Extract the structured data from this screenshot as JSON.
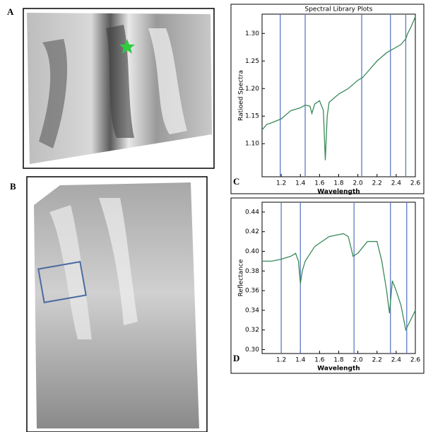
{
  "figure": {
    "panel_a_label": "A",
    "panel_b_label": "B"
  },
  "chart_data": [
    {
      "type": "line",
      "title": "Spectral Library Plots",
      "panel_label": "C",
      "xlabel": "Wavelength",
      "ylabel": "Ratioed Spectra",
      "color": "#3a8a5a",
      "band_color": "#5b7bc4",
      "x": [
        1.0,
        1.05,
        1.1,
        1.2,
        1.3,
        1.4,
        1.45,
        1.5,
        1.52,
        1.55,
        1.6,
        1.64,
        1.66,
        1.68,
        1.7,
        1.8,
        1.9,
        2.0,
        2.05,
        2.1,
        2.2,
        2.3,
        2.35,
        2.4,
        2.45,
        2.5,
        2.52,
        2.55,
        2.6
      ],
      "values": [
        1.125,
        1.135,
        1.138,
        1.145,
        1.16,
        1.165,
        1.17,
        1.168,
        1.155,
        1.172,
        1.178,
        1.16,
        1.07,
        1.15,
        1.175,
        1.19,
        1.2,
        1.215,
        1.22,
        1.23,
        1.25,
        1.265,
        1.27,
        1.275,
        1.28,
        1.29,
        1.3,
        1.31,
        1.33
      ],
      "band_lines": [
        1.19,
        1.45,
        2.04,
        2.34,
        2.5
      ],
      "xlim": [
        1.0,
        2.6
      ],
      "xticks": [
        1.2,
        1.4,
        1.6,
        1.8,
        {
          "value": 2,
          "label": "2.0"
        },
        2.2,
        2.4,
        2.6
      ],
      "ylim": [
        1.04,
        1.335
      ],
      "yticks": [
        {
          "value": 1.1,
          "label": "1.10"
        },
        1.15,
        {
          "value": 1.2,
          "label": "1.20"
        },
        1.25,
        {
          "value": 1.3,
          "label": "1.30"
        }
      ]
    },
    {
      "type": "line",
      "panel_label": "D",
      "xlabel": "Wavelength",
      "ylabel": "Reflectance",
      "color": "#3a8a5a",
      "band_color": "#5b7bc4",
      "x": [
        1.0,
        1.1,
        1.2,
        1.3,
        1.35,
        1.38,
        1.4,
        1.42,
        1.45,
        1.55,
        1.7,
        1.85,
        1.9,
        1.95,
        2.0,
        2.1,
        2.2,
        2.25,
        2.3,
        2.33,
        2.36,
        2.4,
        2.45,
        2.5,
        2.55,
        2.6
      ],
      "values": [
        0.39,
        0.39,
        0.392,
        0.395,
        0.398,
        0.39,
        0.367,
        0.38,
        0.39,
        0.405,
        0.415,
        0.418,
        0.415,
        0.395,
        0.398,
        0.41,
        0.41,
        0.39,
        0.36,
        0.337,
        0.37,
        0.36,
        0.345,
        0.32,
        0.33,
        0.34
      ],
      "band_lines": [
        1.2,
        1.4,
        1.96,
        2.34,
        2.51
      ],
      "xlim": [
        1.0,
        2.6
      ],
      "xticks": [
        1.2,
        1.4,
        1.6,
        1.8,
        {
          "value": 2,
          "label": "2.0"
        },
        2.2,
        2.4,
        2.6
      ],
      "ylim": [
        0.296,
        0.45
      ],
      "yticks": [
        {
          "value": 0.3,
          "label": "0.30"
        },
        0.32,
        0.34,
        0.36,
        0.38,
        {
          "value": 0.4,
          "label": "0.40"
        },
        0.42,
        0.44
      ]
    }
  ]
}
